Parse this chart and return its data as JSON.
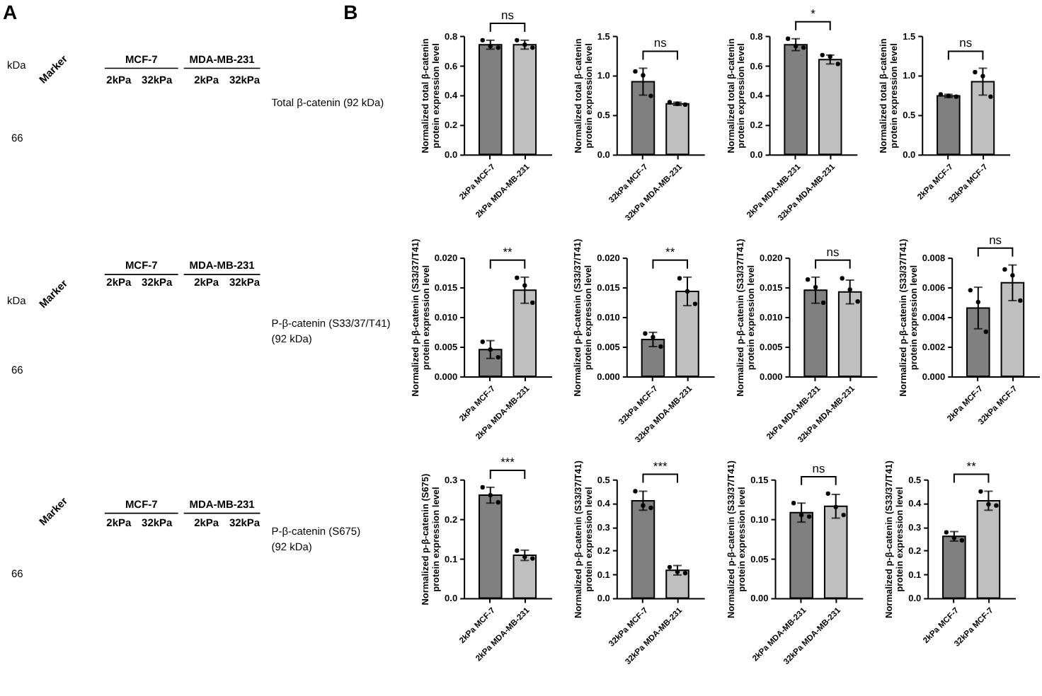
{
  "chart_data": [
    {
      "type": "other",
      "title": "A",
      "annotations": [
        "kDa",
        "Marker",
        "MCF-7",
        "MDA-MB-231",
        "2kPa",
        "32kPa",
        "2kPa",
        "32kPa",
        "66",
        "Total β-catenin (92 kDa)",
        "kDa",
        "Marker",
        "MCF-7",
        "MDA-MB-231",
        "2kPa",
        "32kPa",
        "2kPa",
        "32kPa",
        "66",
        "P-β-catenin (S33/37/T41)\n(92 kDa)",
        "Marker",
        "MCF-7",
        "MDA-MB-231",
        "2kPa",
        "32kPa",
        "2kPa",
        "32kPa",
        "66",
        "P-β-catenin (S675)\n(92 kDa)",
        "B"
      ]
    },
    {
      "type": "bar",
      "ylabel": "Normalized total β-catenin\nprotein expression level",
      "categories": [
        "2kPa MCF-7",
        "2kPa MDA-MB-231"
      ],
      "ylim": [
        0,
        0.8
      ],
      "yticks": [
        {
          "value": 0,
          "label": "0.0"
        },
        0.2,
        0.4,
        0.6,
        0.8
      ],
      "annotations": [
        "ns"
      ],
      "marker": "circle",
      "series": [
        {
          "type": "bar",
          "colors": [
            "#808080",
            "#bfbfbf"
          ],
          "values": [
            0.74,
            0.74
          ],
          "errors": [
            0.03,
            0.03
          ]
        },
        {
          "type": "scatter",
          "color": "#000000",
          "x": [
            "2kPa MCF-7",
            "2kPa MCF-7",
            "2kPa MCF-7",
            "2kPa MDA-MB-231",
            "2kPa MDA-MB-231",
            "2kPa MDA-MB-231"
          ],
          "values": [
            0.77,
            0.73,
            0.72,
            0.77,
            0.74,
            0.72
          ]
        }
      ]
    },
    {
      "type": "bar",
      "ylabel": "Normalized total β-catenin\nprotein expression level",
      "categories": [
        "32kPa MCF-7",
        "32kPa MDA-MB-231"
      ],
      "ylim": [
        0,
        1.5
      ],
      "yticks": [
        {
          "value": 0,
          "label": "0.0"
        },
        0.5,
        {
          "value": 1,
          "label": "1.0"
        },
        1.5
      ],
      "annotations": [
        "ns"
      ],
      "marker": "circle",
      "series": [
        {
          "type": "bar",
          "colors": [
            "#808080",
            "#bfbfbf"
          ],
          "values": [
            0.92,
            0.64
          ],
          "errors": [
            0.17,
            0.02
          ]
        },
        {
          "type": "scatter",
          "color": "#000000",
          "x": [
            "32kPa MCF-7",
            "32kPa MCF-7",
            "32kPa MCF-7",
            "32kPa MDA-MB-231",
            "32kPa MDA-MB-231",
            "32kPa MDA-MB-231"
          ],
          "values": [
            1.05,
            1.0,
            0.74,
            0.66,
            0.64,
            0.63
          ]
        }
      ]
    },
    {
      "type": "bar",
      "ylabel": "Normalized total β-catenin\nprotein expression level",
      "categories": [
        "2kPa MDA-MB-231",
        "32kPa MDA-MB-231"
      ],
      "ylim": [
        0,
        0.8
      ],
      "yticks": [
        {
          "value": 0,
          "label": "0.0"
        },
        0.2,
        0.4,
        0.6,
        0.8
      ],
      "annotations": [
        "*"
      ],
      "marker": "circle",
      "series": [
        {
          "type": "bar",
          "colors": [
            "#808080",
            "#bfbfbf"
          ],
          "values": [
            0.74,
            0.64
          ],
          "errors": [
            0.04,
            0.03
          ]
        },
        {
          "type": "scatter",
          "color": "#000000",
          "x": [
            "2kPa MDA-MB-231",
            "2kPa MDA-MB-231",
            "2kPa MDA-MB-231",
            "32kPa MDA-MB-231",
            "32kPa MDA-MB-231",
            "32kPa MDA-MB-231"
          ],
          "values": [
            0.78,
            0.73,
            0.72,
            0.67,
            0.66,
            0.61
          ]
        }
      ]
    },
    {
      "type": "bar",
      "ylabel": "Normalized total β-catenin\nprotein expression level",
      "categories": [
        "2kPa MCF-7",
        "32kPa MCF-7"
      ],
      "ylim": [
        0,
        1.5
      ],
      "yticks": [
        {
          "value": 0,
          "label": "0.0"
        },
        0.5,
        {
          "value": 1,
          "label": "1.0"
        },
        1.5
      ],
      "annotations": [
        "ns"
      ],
      "marker": "circle",
      "series": [
        {
          "type": "bar",
          "colors": [
            "#808080",
            "#bfbfbf"
          ],
          "values": [
            0.74,
            0.92
          ],
          "errors": [
            0.02,
            0.17
          ]
        },
        {
          "type": "scatter",
          "color": "#000000",
          "x": [
            "2kPa MCF-7",
            "2kPa MCF-7",
            "2kPa MCF-7",
            "32kPa MCF-7",
            "32kPa MCF-7",
            "32kPa MCF-7"
          ],
          "values": [
            0.76,
            0.74,
            0.73,
            1.04,
            0.99,
            0.73
          ]
        }
      ]
    },
    {
      "type": "bar",
      "ylabel": "Normalized p-β-catenin (S33/37/T41)\nprotein expression level",
      "categories": [
        "2kPa MCF-7",
        "2kPa MDA-MB-231"
      ],
      "ylim": [
        0,
        0.02
      ],
      "yticks": [
        {
          "value": 0,
          "label": "0.000"
        },
        0.005,
        {
          "value": 0.01,
          "label": "0.010"
        },
        0.015,
        {
          "value": 0.02,
          "label": "0.020"
        }
      ],
      "annotations": [
        "**"
      ],
      "marker": "circle",
      "series": [
        {
          "type": "bar",
          "colors": [
            "#808080",
            "#bfbfbf"
          ],
          "values": [
            0.0045,
            0.0145
          ],
          "errors": [
            0.0015,
            0.0022
          ]
        },
        {
          "type": "scatter",
          "color": "#000000",
          "x": [
            "2kPa MCF-7",
            "2kPa MCF-7",
            "2kPa MCF-7",
            "2kPa MDA-MB-231",
            "2kPa MDA-MB-231",
            "2kPa MDA-MB-231"
          ],
          "values": [
            0.0058,
            0.0045,
            0.0032,
            0.0166,
            0.0153,
            0.0124
          ]
        }
      ]
    },
    {
      "type": "bar",
      "ylabel": "Normalized p-β-catenin (S33/37/T41)\nprotein expression level",
      "categories": [
        "32kPa MCF-7",
        "32kPa MDA-MB-231"
      ],
      "ylim": [
        0,
        0.02
      ],
      "yticks": [
        {
          "value": 0,
          "label": "0.000"
        },
        0.005,
        {
          "value": 0.01,
          "label": "0.010"
        },
        0.015,
        {
          "value": 0.02,
          "label": "0.020"
        }
      ],
      "annotations": [
        "**"
      ],
      "marker": "circle",
      "series": [
        {
          "type": "bar",
          "colors": [
            "#808080",
            "#bfbfbf"
          ],
          "values": [
            0.0062,
            0.0143
          ],
          "errors": [
            0.0012,
            0.0024
          ]
        },
        {
          "type": "scatter",
          "color": "#000000",
          "x": [
            "32kPa MCF-7",
            "32kPa MCF-7",
            "32kPa MCF-7",
            "32kPa MDA-MB-231",
            "32kPa MDA-MB-231",
            "32kPa MDA-MB-231"
          ],
          "values": [
            0.0072,
            0.0066,
            0.005,
            0.0165,
            0.0143,
            0.0122
          ]
        }
      ]
    },
    {
      "type": "bar",
      "ylabel": "Normalized p-β-catenin (S33/37/T41)\nprotein expression level",
      "categories": [
        "2kPa MDA-MB-231",
        "32kPa MDA-MB-231"
      ],
      "ylim": [
        0,
        0.02
      ],
      "yticks": [
        {
          "value": 0,
          "label": "0.000"
        },
        0.005,
        {
          "value": 0.01,
          "label": "0.010"
        },
        0.015,
        {
          "value": 0.02,
          "label": "0.020"
        }
      ],
      "annotations": [
        "ns"
      ],
      "marker": "circle",
      "series": [
        {
          "type": "bar",
          "colors": [
            "#808080",
            "#bfbfbf"
          ],
          "values": [
            0.0145,
            0.0142
          ],
          "errors": [
            0.0022,
            0.002
          ]
        },
        {
          "type": "scatter",
          "color": "#000000",
          "x": [
            "2kPa MDA-MB-231",
            "2kPa MDA-MB-231",
            "2kPa MDA-MB-231",
            "32kPa MDA-MB-231",
            "32kPa MDA-MB-231",
            "32kPa MDA-MB-231"
          ],
          "values": [
            0.0163,
            0.015,
            0.0124,
            0.0165,
            0.0146,
            0.0126
          ]
        }
      ]
    },
    {
      "type": "bar",
      "ylabel": "Normalized p-β-catenin (S33/37/T41)\nprotein expression level",
      "categories": [
        "2kPa MCF-7",
        "32kPa MCF-7"
      ],
      "ylim": [
        0,
        0.008
      ],
      "yticks": [
        {
          "value": 0,
          "label": "0.000"
        },
        0.002,
        0.004,
        0.006,
        0.008
      ],
      "annotations": [
        "ns"
      ],
      "marker": "circle",
      "series": [
        {
          "type": "bar",
          "colors": [
            "#808080",
            "#bfbfbf"
          ],
          "values": [
            0.0046,
            0.0063
          ],
          "errors": [
            0.0014,
            0.0012
          ]
        },
        {
          "type": "scatter",
          "color": "#000000",
          "x": [
            "2kPa MCF-7",
            "2kPa MCF-7",
            "2kPa MCF-7",
            "32kPa MCF-7",
            "32kPa MCF-7",
            "32kPa MCF-7"
          ],
          "values": [
            0.0058,
            0.005,
            0.003,
            0.0072,
            0.0068,
            0.0051
          ]
        }
      ]
    },
    {
      "type": "bar",
      "ylabel": "Normalized p-β-catenin (S675)\nprotein expression level",
      "categories": [
        "2kPa MCF-7",
        "2kPa MDA-MB-231"
      ],
      "ylim": [
        0,
        0.3
      ],
      "yticks": [
        {
          "value": 0,
          "label": "0.0"
        },
        0.1,
        0.2,
        0.3
      ],
      "annotations": [
        "***"
      ],
      "marker": "circle",
      "series": [
        {
          "type": "bar",
          "colors": [
            "#808080",
            "#bfbfbf"
          ],
          "values": [
            0.26,
            0.108
          ],
          "errors": [
            0.02,
            0.013
          ]
        },
        {
          "type": "scatter",
          "color": "#000000",
          "x": [
            "2kPa MCF-7",
            "2kPa MCF-7",
            "2kPa MCF-7",
            "2kPa MDA-MB-231",
            "2kPa MDA-MB-231",
            "2kPa MDA-MB-231"
          ],
          "values": [
            0.28,
            0.26,
            0.242,
            0.12,
            0.104,
            0.1
          ]
        }
      ]
    },
    {
      "type": "bar",
      "ylabel": "Normalized p-β-catenin (S33/37/T41)\nprotein expression level",
      "categories": [
        "32kPa MCF-7",
        "32kPa MDA-MB-231"
      ],
      "ylim": [
        0,
        0.5
      ],
      "yticks": [
        {
          "value": 0,
          "label": "0.0"
        },
        0.1,
        0.2,
        0.3,
        0.4,
        0.5
      ],
      "annotations": [
        "***"
      ],
      "marker": "circle",
      "series": [
        {
          "type": "bar",
          "colors": [
            "#808080",
            "#bfbfbf"
          ],
          "values": [
            0.41,
            0.117
          ],
          "errors": [
            0.04,
            0.02
          ]
        },
        {
          "type": "scatter",
          "color": "#000000",
          "x": [
            "32kPa MCF-7",
            "32kPa MCF-7",
            "32kPa MCF-7",
            "32kPa MDA-MB-231",
            "32kPa MDA-MB-231",
            "32kPa MDA-MB-231"
          ],
          "values": [
            0.45,
            0.39,
            0.38,
            0.13,
            0.11,
            0.105
          ]
        }
      ]
    },
    {
      "type": "bar",
      "ylabel": "Normalized p-β-catenin (S33/37/T41)\nprotein expression level",
      "categories": [
        "2kPa MDA-MB-231",
        "32kPa MDA-MB-231"
      ],
      "ylim": [
        0,
        0.15
      ],
      "yticks": [
        {
          "value": 0,
          "label": "0.00"
        },
        0.05,
        {
          "value": 0.1,
          "label": "0.10"
        },
        0.15
      ],
      "annotations": [
        "ns"
      ],
      "marker": "circle",
      "series": [
        {
          "type": "bar",
          "colors": [
            "#808080",
            "#bfbfbf"
          ],
          "values": [
            0.108,
            0.116
          ],
          "errors": [
            0.012,
            0.015
          ]
        },
        {
          "type": "scatter",
          "color": "#000000",
          "x": [
            "2kPa MDA-MB-231",
            "2kPa MDA-MB-231",
            "2kPa MDA-MB-231",
            "32kPa MDA-MB-231",
            "32kPa MDA-MB-231",
            "32kPa MDA-MB-231"
          ],
          "values": [
            0.12,
            0.105,
            0.103,
            0.132,
            0.115,
            0.105
          ]
        }
      ]
    },
    {
      "type": "bar",
      "ylabel": "Normalized p-β-catenin (S33/37/T41)\nprotein expression level",
      "categories": [
        "2kPa MCF-7",
        "32kPa MCF-7"
      ],
      "ylim": [
        0,
        0.5
      ],
      "yticks": [
        {
          "value": 0,
          "label": "0.0"
        },
        0.1,
        0.2,
        0.3,
        0.4,
        0.5
      ],
      "annotations": [
        "**"
      ],
      "marker": "circle",
      "series": [
        {
          "type": "bar",
          "colors": [
            "#808080",
            "#bfbfbf"
          ],
          "values": [
            0.26,
            0.41
          ],
          "errors": [
            0.02,
            0.04
          ]
        },
        {
          "type": "scatter",
          "color": "#000000",
          "x": [
            "2kPa MCF-7",
            "2kPa MCF-7",
            "2kPa MCF-7",
            "32kPa MCF-7",
            "32kPa MCF-7",
            "32kPa MCF-7"
          ],
          "values": [
            0.277,
            0.253,
            0.243,
            0.449,
            0.395,
            0.39
          ]
        }
      ]
    }
  ]
}
